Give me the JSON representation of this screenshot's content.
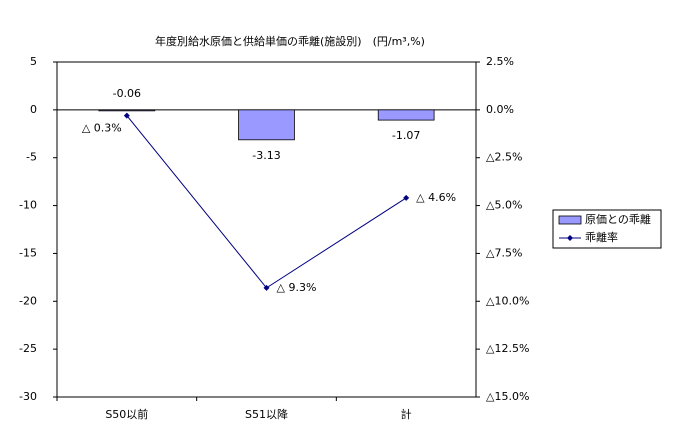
{
  "chart_data": {
    "type": "bar_line",
    "title": "年度別給水原価と供給単価の乖離(施設別)　(円/m³,%)",
    "categories": [
      "S50以前",
      "S51以降",
      "計"
    ],
    "series": [
      {
        "name": "原価との乖離",
        "type": "bar",
        "color": "#9999ff",
        "values": [
          -0.06,
          -3.13,
          -1.07
        ]
      },
      {
        "name": "乖離率",
        "type": "line",
        "axis": "y2",
        "color": "#000080",
        "values": [
          -0.3,
          -9.3,
          -4.6
        ],
        "value_labels": [
          "△ 0.3%",
          "△ 9.3%",
          "△ 4.6%"
        ]
      }
    ],
    "ylim": [
      -30,
      5
    ],
    "yticks": [
      5,
      0,
      -5,
      -10,
      -15,
      -20,
      -25,
      -30
    ],
    "y2lim": [
      -15,
      2.5
    ],
    "y2ticks": [
      {
        "value": 2.5,
        "label": "2.5%"
      },
      {
        "value": 0,
        "label": "0.0%"
      },
      {
        "value": -2.5,
        "label": "△2.5%"
      },
      {
        "value": -5,
        "label": "△5.0%"
      },
      {
        "value": -7.5,
        "label": "△7.5%"
      },
      {
        "value": -10,
        "label": "△10.0%"
      },
      {
        "value": -12.5,
        "label": "△12.5%"
      },
      {
        "value": -15,
        "label": "△15.0%"
      }
    ],
    "legend": "right"
  }
}
